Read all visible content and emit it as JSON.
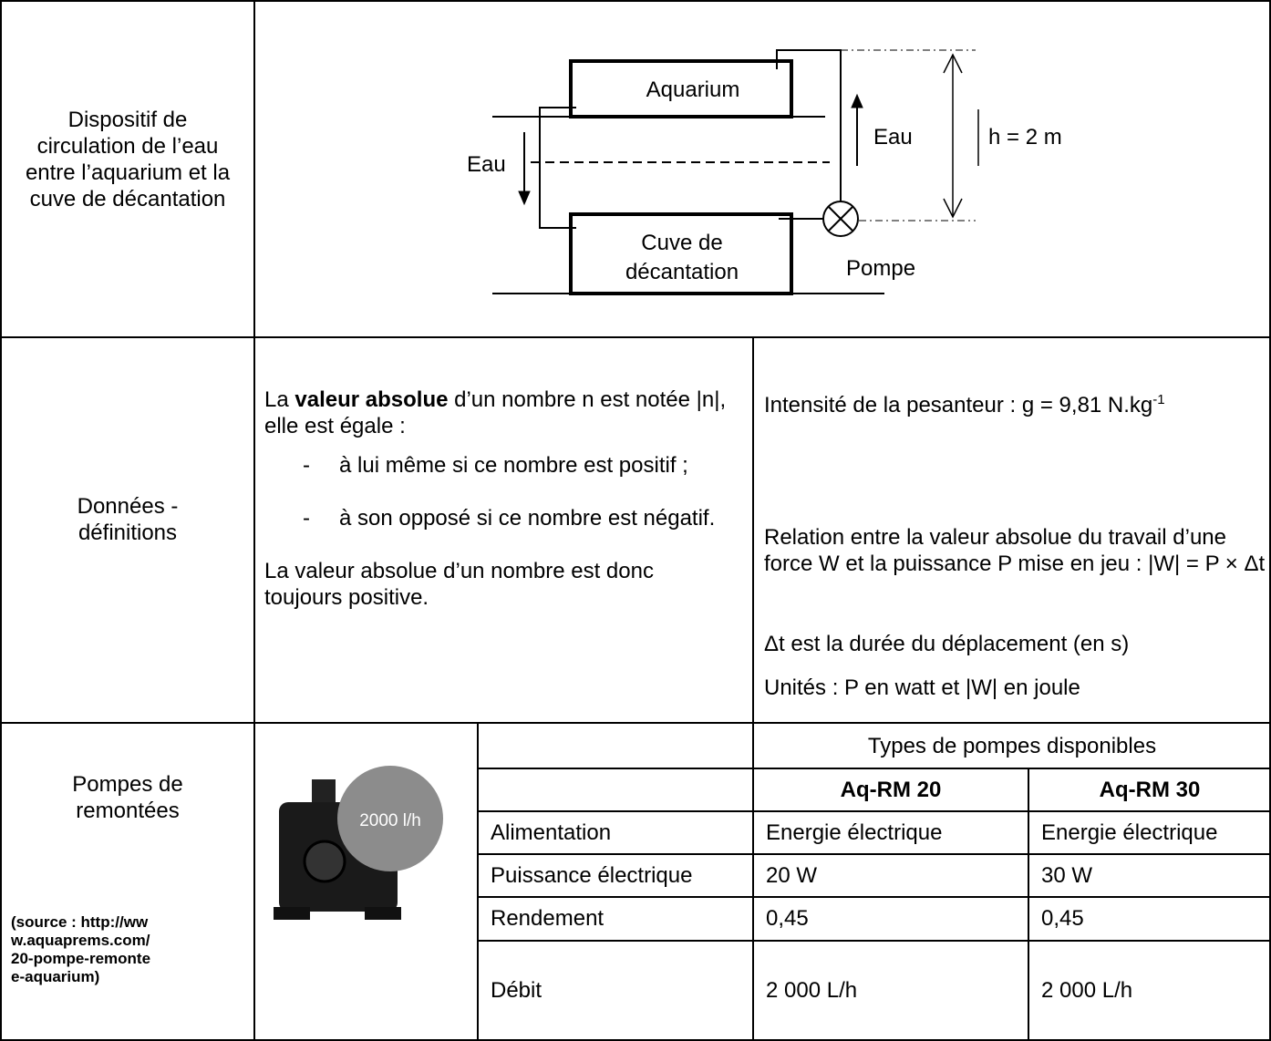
{
  "rows": [
    {
      "label": "Dispositif de circulation de l’eau entre l’aquarium et la cuve de décantation",
      "diagram": {
        "aquarium": "Aquarium",
        "tank": [
          "Cuve de",
          "décantation"
        ],
        "water_down": "Eau",
        "water_up": "Eau",
        "height": "h = 2 m",
        "pump": "Pompe"
      }
    },
    {
      "label": "Données - définitions",
      "left": {
        "intro_start": "La ",
        "intro_bold": "valeur absolue",
        "intro_end": " d’un nombre n est notée |n|, elle est égale :",
        "items": [
          "à lui même si ce nombre est positif ;",
          "à son opposé si ce nombre est négatif."
        ],
        "conclusion": "La valeur absolue d’un nombre est donc toujours positive."
      },
      "right": {
        "gravity": "Intensité de la pesanteur : g = 9,81 N.kg",
        "gravity_exp": "-1",
        "relation": "Relation entre la valeur absolue du travail d’une force W et la puissance P mise en jeu : |W| = P × Δt",
        "duration": "Δt est la durée du déplacement (en s)",
        "units": "Unités : P en watt et |W| en joule"
      }
    },
    {
      "label": "Pompes de remontées",
      "source": "(source : http://www.aquaprems.com/20-pompe-remontee-aquarium)",
      "image_badge": "2000 l/h",
      "table": {
        "title": "Types de pompes disponibles",
        "models": [
          "Aq-RM 20",
          "Aq-RM 30"
        ],
        "rows": [
          [
            "Alimentation",
            "Energie électrique",
            "Energie électrique"
          ],
          [
            "Puissance électrique",
            "20 W",
            "30 W"
          ],
          [
            "Rendement",
            "0,45",
            "0,45"
          ],
          [
            "Débit",
            "2 000 L/h",
            "2 000 L/h"
          ]
        ]
      }
    }
  ]
}
